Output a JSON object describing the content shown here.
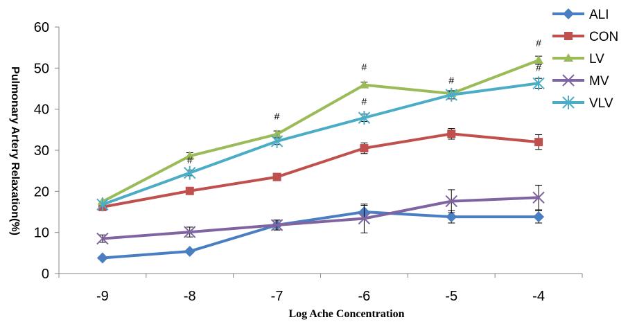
{
  "chart_data": {
    "type": "line",
    "xlabel": "Log Ache Concentration",
    "ylabel": "Pulmonary Artery Relaxation(%)",
    "x": [
      -9,
      -8,
      -7,
      -6,
      -5,
      -4
    ],
    "x_tick_labels": [
      "-9",
      "-8",
      "-7",
      "-6",
      "-5",
      "-4"
    ],
    "ylim": [
      0,
      60
    ],
    "y_ticks": [
      "0",
      "10",
      "20",
      "30",
      "40",
      "50",
      "60"
    ],
    "grid": false,
    "legend_position": "right",
    "series": [
      {
        "name": "ALI",
        "color": "#4A7EC2",
        "marker": "diamond",
        "values": [
          3.8,
          5.4,
          11.8,
          15.0,
          13.8,
          13.8
        ],
        "errors": [
          0.0,
          0.0,
          1.2,
          1.6,
          1.5,
          1.5
        ]
      },
      {
        "name": "CON",
        "color": "#C0504D",
        "marker": "square",
        "values": [
          16.2,
          20.1,
          23.5,
          30.5,
          34.0,
          32.0
        ],
        "errors": [
          0.0,
          0.0,
          0.0,
          1.3,
          1.3,
          1.8
        ]
      },
      {
        "name": "LV",
        "color": "#9BBB59",
        "marker": "triangle",
        "values": [
          17.5,
          28.6,
          33.9,
          45.9,
          43.8,
          51.9
        ],
        "errors": [
          0.0,
          0.8,
          0.8,
          0.7,
          0.5,
          1.0
        ]
      },
      {
        "name": "MV",
        "color": "#8064A2",
        "marker": "x",
        "values": [
          8.5,
          10.1,
          11.8,
          13.4,
          17.6,
          18.5
        ],
        "errors": [
          0.9,
          1.2,
          1.2,
          3.5,
          2.8,
          3.0
        ]
      },
      {
        "name": "VLV",
        "color": "#4BACC6",
        "marker": "star",
        "values": [
          16.8,
          24.5,
          32.2,
          37.9,
          43.5,
          46.3
        ],
        "errors": [
          0.0,
          0.7,
          0.8,
          0.9,
          1.0,
          1.2
        ]
      }
    ],
    "annotations": [
      {
        "text": "#",
        "x": -8,
        "y": 26.8
      },
      {
        "text": "#",
        "x": -7,
        "y": 37.5
      },
      {
        "text": "#",
        "x": -6,
        "y": 49.5
      },
      {
        "text": "#",
        "x": -6,
        "y": 41.0
      },
      {
        "text": "#",
        "x": -5,
        "y": 46.3
      },
      {
        "text": "#",
        "x": -4,
        "y": 55.3
      },
      {
        "text": "#",
        "x": -4,
        "y": 49.3
      }
    ]
  }
}
